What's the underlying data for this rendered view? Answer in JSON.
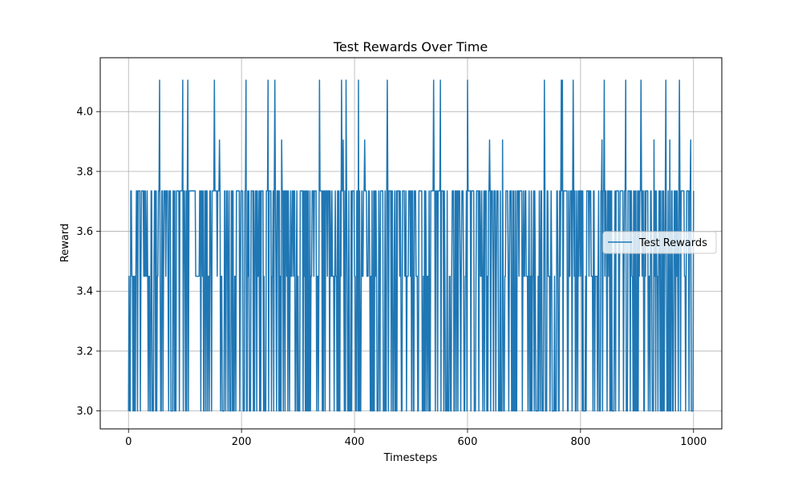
{
  "chart_data": {
    "type": "line",
    "title": "Test Rewards Over Time",
    "xlabel": "Timesteps",
    "ylabel": "Reward",
    "xlim": [
      -50,
      1050
    ],
    "ylim": [
      2.94,
      4.18
    ],
    "x_ticks": [
      0,
      200,
      400,
      600,
      800,
      1000
    ],
    "y_ticks": [
      3.0,
      3.2,
      3.4,
      3.6,
      3.8,
      4.0
    ],
    "x_tick_labels": [
      "0",
      "200",
      "400",
      "600",
      "800",
      "1000"
    ],
    "y_tick_labels": [
      "3.0",
      "3.2",
      "3.4",
      "3.6",
      "3.8",
      "4.0"
    ],
    "grid": true,
    "legend": "center-right",
    "color": "#1f77b4",
    "levels": [
      3.0,
      3.45,
      3.735,
      3.905,
      4.105
    ],
    "x_range": [
      0,
      1000
    ],
    "peaks_4_105": [
      55,
      96,
      105,
      152,
      208,
      247,
      259,
      338,
      377,
      385,
      407,
      458,
      540,
      552,
      600,
      736,
      766,
      768,
      787,
      842,
      880,
      907,
      951,
      975
    ],
    "peaks_3_905": [
      161,
      271,
      380,
      418,
      639,
      662,
      838,
      930,
      958,
      995
    ],
    "flat_segments": [
      [
        108,
        119
      ],
      [
        119,
        125
      ]
    ],
    "series": [
      {
        "name": "Test Rewards"
      }
    ]
  }
}
